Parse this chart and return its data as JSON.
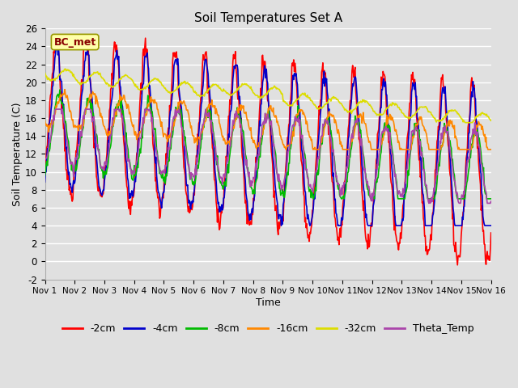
{
  "title": "Soil Temperatures Set A",
  "xlabel": "Time",
  "ylabel": "Soil Temperature (C)",
  "ylim": [
    -2,
    26
  ],
  "yticks": [
    -2,
    0,
    2,
    4,
    6,
    8,
    10,
    12,
    14,
    16,
    18,
    20,
    22,
    24,
    26
  ],
  "xtick_labels": [
    "Nov 1",
    "Nov 2",
    "Nov 3",
    "Nov 4",
    "Nov 5",
    "Nov 6",
    "Nov 7",
    "Nov 8",
    "Nov 9",
    "Nov 10",
    "Nov 11",
    "Nov 12",
    "Nov 13",
    "Nov 14",
    "Nov 15",
    "Nov 16"
  ],
  "colors": {
    "-2cm": "#ff0000",
    "-4cm": "#0000cc",
    "-8cm": "#00bb00",
    "-16cm": "#ff8800",
    "-32cm": "#dddd00",
    "Theta_Temp": "#aa44aa"
  },
  "annotation_text": "BC_met",
  "bg_color": "#e0e0e0",
  "grid_color": "#ffffff",
  "n_points": 720
}
